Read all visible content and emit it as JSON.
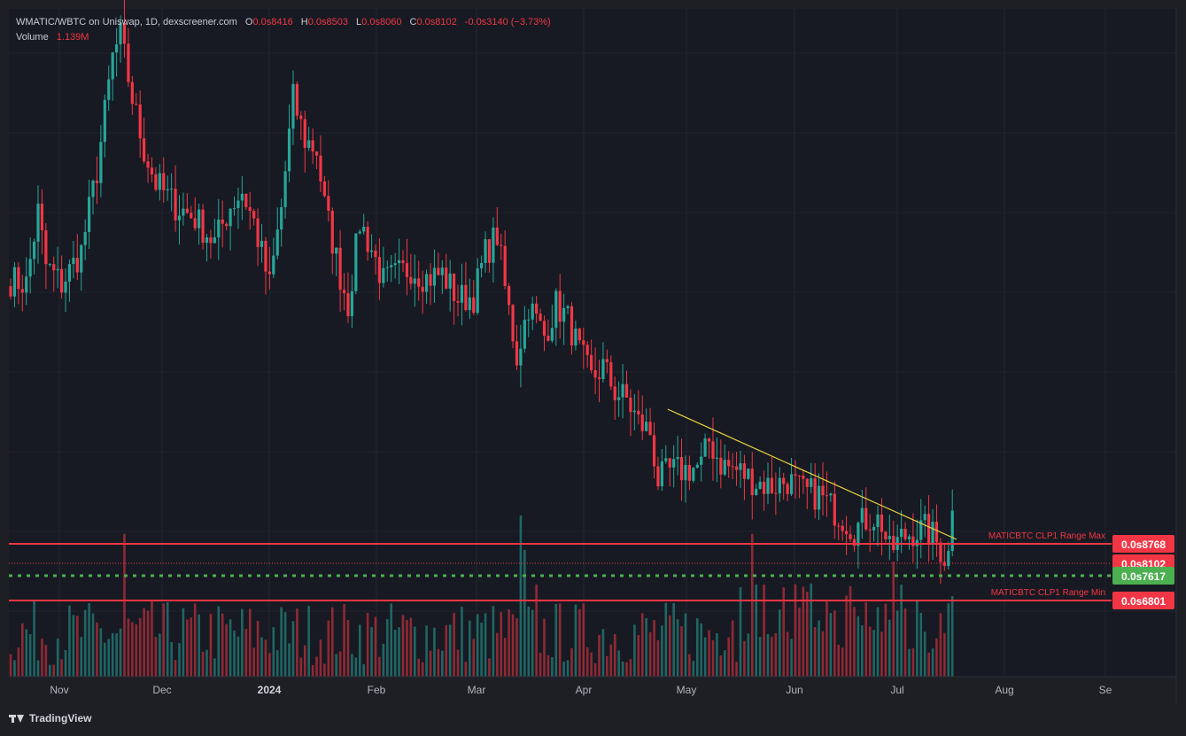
{
  "header": {
    "symbol": "WMATIC/WBTC on Uniswap, 1D, dexscreener.com",
    "open_label": "O",
    "open_value": "0.0s8416",
    "high_label": "H",
    "high_value": "0.0s8503",
    "low_label": "L",
    "low_value": "0.0s8060",
    "close_label": "C",
    "close_value": "0.0s8102",
    "change": "-0.0s3140 (−3.73%)",
    "volume_label": "Volume",
    "volume_value": "1.139M"
  },
  "footer": {
    "brand": "TradingView",
    "logo_icon": "tradingview-logo-icon"
  },
  "colors": {
    "up": "#26a69a",
    "down": "#f23645",
    "trendline": "#e8d33c",
    "bg": "#1e1f25",
    "green_line": "#4caf50"
  },
  "chart_data": {
    "type": "candlestick",
    "x_ticks": [
      "Nov",
      "Dec",
      "2024",
      "Feb",
      "Mar",
      "Apr",
      "May",
      "Jun",
      "Jul",
      "Aug",
      "Se"
    ],
    "ylim": [
      0.074,
      0.105
    ],
    "anchors": [
      [
        0,
        0.0922
      ],
      [
        4,
        0.092
      ],
      [
        7,
        0.0955
      ],
      [
        9,
        0.0929
      ],
      [
        13,
        0.092
      ],
      [
        18,
        0.0936
      ],
      [
        22,
        0.0975
      ],
      [
        26,
        0.103
      ],
      [
        28,
        0.104
      ],
      [
        31,
        0.101
      ],
      [
        34,
        0.0985
      ],
      [
        37,
        0.0969
      ],
      [
        42,
        0.0958
      ],
      [
        47,
        0.0952
      ],
      [
        52,
        0.094
      ],
      [
        56,
        0.0958
      ],
      [
        59,
        0.0965
      ],
      [
        62,
        0.095
      ],
      [
        66,
        0.0919
      ],
      [
        69,
        0.0957
      ],
      [
        72,
        0.101
      ],
      [
        75,
        0.099
      ],
      [
        78,
        0.0985
      ],
      [
        80,
        0.0958
      ],
      [
        84,
        0.0924
      ],
      [
        86,
        0.091
      ],
      [
        89,
        0.095
      ],
      [
        92,
        0.0937
      ],
      [
        95,
        0.0921
      ],
      [
        98,
        0.0924
      ],
      [
        102,
        0.0928
      ],
      [
        106,
        0.0923
      ],
      [
        110,
        0.0925
      ],
      [
        114,
        0.0913
      ],
      [
        118,
        0.0914
      ],
      [
        121,
        0.0935
      ],
      [
        124,
        0.0944
      ],
      [
        126,
        0.0918
      ],
      [
        129,
        0.0885
      ],
      [
        132,
        0.091
      ],
      [
        136,
        0.0895
      ],
      [
        139,
        0.091
      ],
      [
        142,
        0.0903
      ],
      [
        145,
        0.0887
      ],
      [
        148,
        0.0874
      ],
      [
        151,
        0.088
      ],
      [
        154,
        0.0868
      ],
      [
        157,
        0.0864
      ],
      [
        160,
        0.0853
      ],
      [
        163,
        0.0848
      ],
      [
        165,
        0.0825
      ],
      [
        168,
        0.0829
      ],
      [
        172,
        0.083
      ],
      [
        176,
        0.0832
      ],
      [
        178,
        0.0844
      ],
      [
        181,
        0.0833
      ],
      [
        186,
        0.0829
      ],
      [
        190,
        0.0824
      ],
      [
        194,
        0.0822
      ],
      [
        198,
        0.0825
      ],
      [
        202,
        0.0819
      ],
      [
        206,
        0.0818
      ],
      [
        209,
        0.0812
      ],
      [
        212,
        0.0807
      ],
      [
        215,
        0.0801
      ],
      [
        218,
        0.0806
      ],
      [
        220,
        0.0807
      ],
      [
        222,
        0.0804
      ],
      [
        224,
        0.079
      ],
      [
        227,
        0.0797
      ],
      [
        230,
        0.08
      ],
      [
        233,
        0.0801
      ],
      [
        235,
        0.0798
      ],
      [
        238,
        0.0788
      ],
      [
        240,
        0.079
      ]
    ],
    "last_close": 0.08102,
    "levels": [
      {
        "name": "MATICBTC CLP1 Range Max",
        "value": 0.08768,
        "label": "0.0s8768",
        "color": "#f23645",
        "style": "solid"
      },
      {
        "name": "",
        "value": 0.08102,
        "label": "0.0s8102",
        "color": "#f23645",
        "style": "dotted"
      },
      {
        "name": "",
        "value": 0.07617,
        "label": "0.0s7617",
        "color": "#4caf50",
        "style": "dashed"
      },
      {
        "name": "MATICBTC CLP1 Range Min",
        "value": 0.06801,
        "label": "0.0s6801",
        "color": "#f23645",
        "style": "solid"
      }
    ],
    "trendline": {
      "from": [
        167,
        0.0864
      ],
      "to": [
        240,
        0.0806
      ]
    },
    "volume_peaks": [
      [
        29,
        0.62
      ],
      [
        130,
        0.7
      ],
      [
        131,
        0.55
      ],
      [
        134,
        0.4
      ],
      [
        189,
        0.62
      ],
      [
        192,
        0.4
      ],
      [
        225,
        0.5
      ],
      [
        227,
        0.4
      ],
      [
        240,
        0.35
      ]
    ]
  }
}
